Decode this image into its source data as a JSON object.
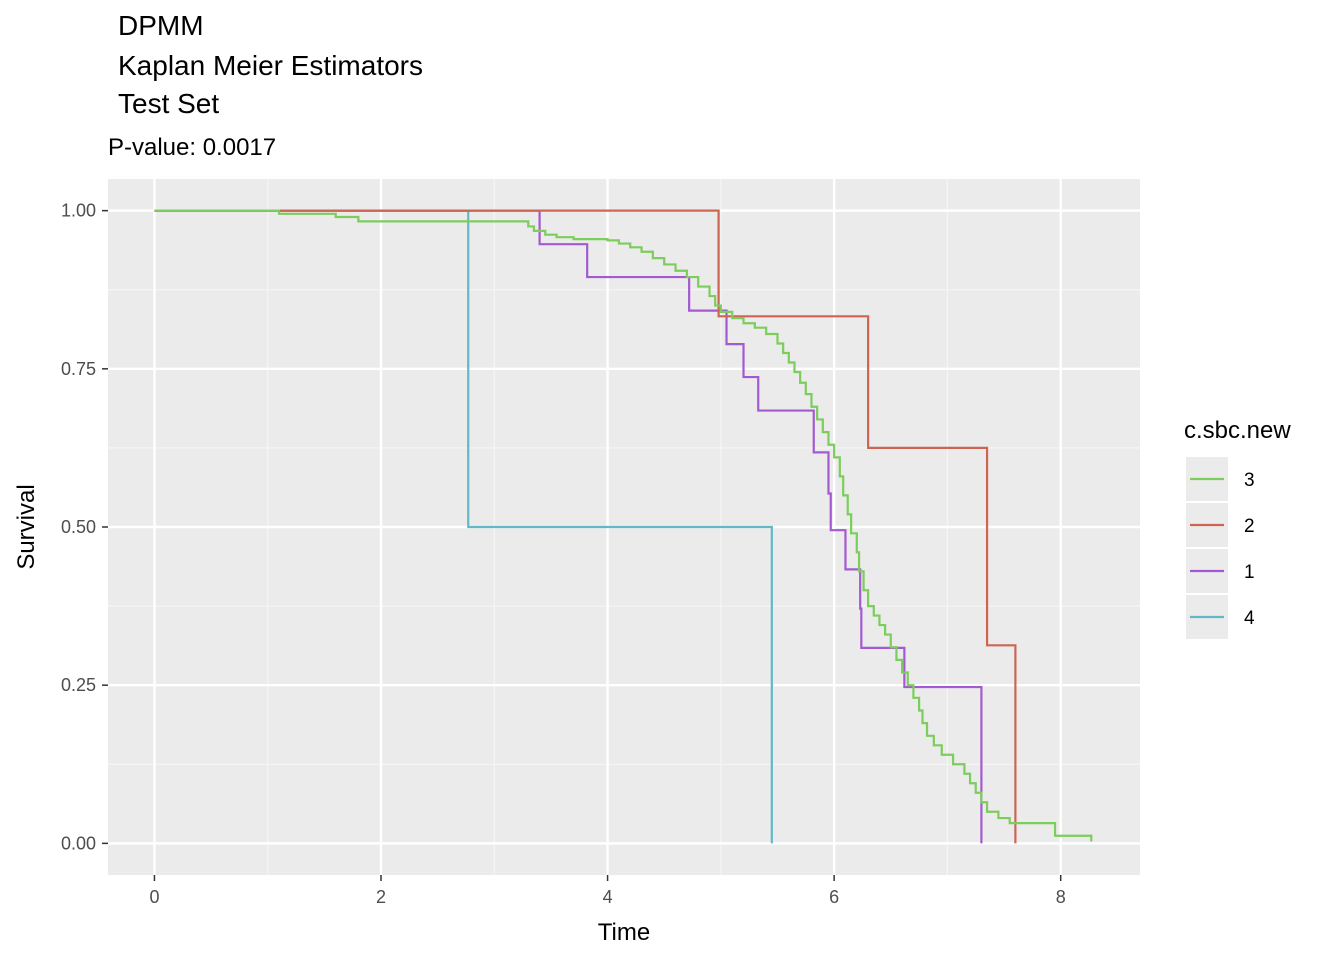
{
  "chart_data": {
    "type": "line",
    "title_lines": [
      "DPMM",
      "Kaplan Meier Estimators",
      "Test Set"
    ],
    "subtitle": "P-value: 0.0017",
    "xlabel": "Time",
    "ylabel": "Survival",
    "xlim": [
      -0.41,
      8.7
    ],
    "ylim": [
      -0.05,
      1.05
    ],
    "x_ticks": [
      0,
      2,
      4,
      6,
      8
    ],
    "x_tick_labels": [
      "0",
      "2",
      "4",
      "6",
      "8"
    ],
    "y_ticks": [
      0.0,
      0.25,
      0.5,
      0.75,
      1.0
    ],
    "y_tick_labels": [
      "0.00",
      "0.25",
      "0.50",
      "0.75",
      "1.00"
    ],
    "grid": true,
    "legend_title": "c.sbc.new",
    "legend_position": "right",
    "series": [
      {
        "name": "3",
        "color": "#7ccd5c",
        "steps": [
          [
            0,
            1.0
          ],
          [
            1.1,
            0.995
          ],
          [
            1.6,
            0.99
          ],
          [
            1.8,
            0.983
          ],
          [
            3.3,
            0.975
          ],
          [
            3.35,
            0.968
          ],
          [
            3.45,
            0.962
          ],
          [
            3.55,
            0.958
          ],
          [
            3.7,
            0.955
          ],
          [
            4.0,
            0.953
          ],
          [
            4.1,
            0.948
          ],
          [
            4.2,
            0.942
          ],
          [
            4.3,
            0.935
          ],
          [
            4.4,
            0.925
          ],
          [
            4.5,
            0.915
          ],
          [
            4.6,
            0.905
          ],
          [
            4.7,
            0.895
          ],
          [
            4.8,
            0.88
          ],
          [
            4.9,
            0.865
          ],
          [
            4.95,
            0.85
          ],
          [
            5.0,
            0.84
          ],
          [
            5.1,
            0.83
          ],
          [
            5.2,
            0.822
          ],
          [
            5.3,
            0.815
          ],
          [
            5.4,
            0.805
          ],
          [
            5.5,
            0.79
          ],
          [
            5.55,
            0.775
          ],
          [
            5.6,
            0.76
          ],
          [
            5.65,
            0.745
          ],
          [
            5.7,
            0.728
          ],
          [
            5.75,
            0.71
          ],
          [
            5.8,
            0.69
          ],
          [
            5.85,
            0.67
          ],
          [
            5.9,
            0.65
          ],
          [
            5.95,
            0.63
          ],
          [
            6.0,
            0.61
          ],
          [
            6.05,
            0.58
          ],
          [
            6.08,
            0.55
          ],
          [
            6.12,
            0.52
          ],
          [
            6.15,
            0.49
          ],
          [
            6.2,
            0.46
          ],
          [
            6.22,
            0.43
          ],
          [
            6.26,
            0.4
          ],
          [
            6.3,
            0.375
          ],
          [
            6.35,
            0.36
          ],
          [
            6.4,
            0.345
          ],
          [
            6.45,
            0.33
          ],
          [
            6.5,
            0.31
          ],
          [
            6.55,
            0.29
          ],
          [
            6.6,
            0.27
          ],
          [
            6.65,
            0.25
          ],
          [
            6.7,
            0.23
          ],
          [
            6.75,
            0.21
          ],
          [
            6.78,
            0.19
          ],
          [
            6.82,
            0.17
          ],
          [
            6.88,
            0.155
          ],
          [
            6.95,
            0.14
          ],
          [
            7.05,
            0.125
          ],
          [
            7.15,
            0.11
          ],
          [
            7.2,
            0.095
          ],
          [
            7.25,
            0.08
          ],
          [
            7.3,
            0.065
          ],
          [
            7.35,
            0.05
          ],
          [
            7.45,
            0.04
          ],
          [
            7.55,
            0.032
          ],
          [
            7.95,
            0.012
          ],
          [
            8.27,
            0.003
          ]
        ]
      },
      {
        "name": "2",
        "color": "#cc6652",
        "steps": [
          [
            0,
            1.0
          ],
          [
            4.98,
            0.833
          ],
          [
            6.3,
            0.625
          ],
          [
            7.35,
            0.313
          ],
          [
            7.6,
            0.0
          ]
        ]
      },
      {
        "name": "1",
        "color": "#a35ad1",
        "steps": [
          [
            0,
            1.0
          ],
          [
            3.4,
            0.947
          ],
          [
            3.82,
            0.895
          ],
          [
            4.72,
            0.842
          ],
          [
            5.05,
            0.789
          ],
          [
            5.2,
            0.737
          ],
          [
            5.33,
            0.684
          ],
          [
            5.82,
            0.618
          ],
          [
            5.95,
            0.553
          ],
          [
            5.97,
            0.495
          ],
          [
            6.1,
            0.433
          ],
          [
            6.23,
            0.371
          ],
          [
            6.24,
            0.309
          ],
          [
            6.62,
            0.247
          ],
          [
            7.3,
            0.0
          ]
        ]
      },
      {
        "name": "4",
        "color": "#62b8c8",
        "steps": [
          [
            0,
            1.0
          ],
          [
            2.77,
            0.5
          ],
          [
            5.45,
            0.0
          ]
        ]
      }
    ]
  }
}
